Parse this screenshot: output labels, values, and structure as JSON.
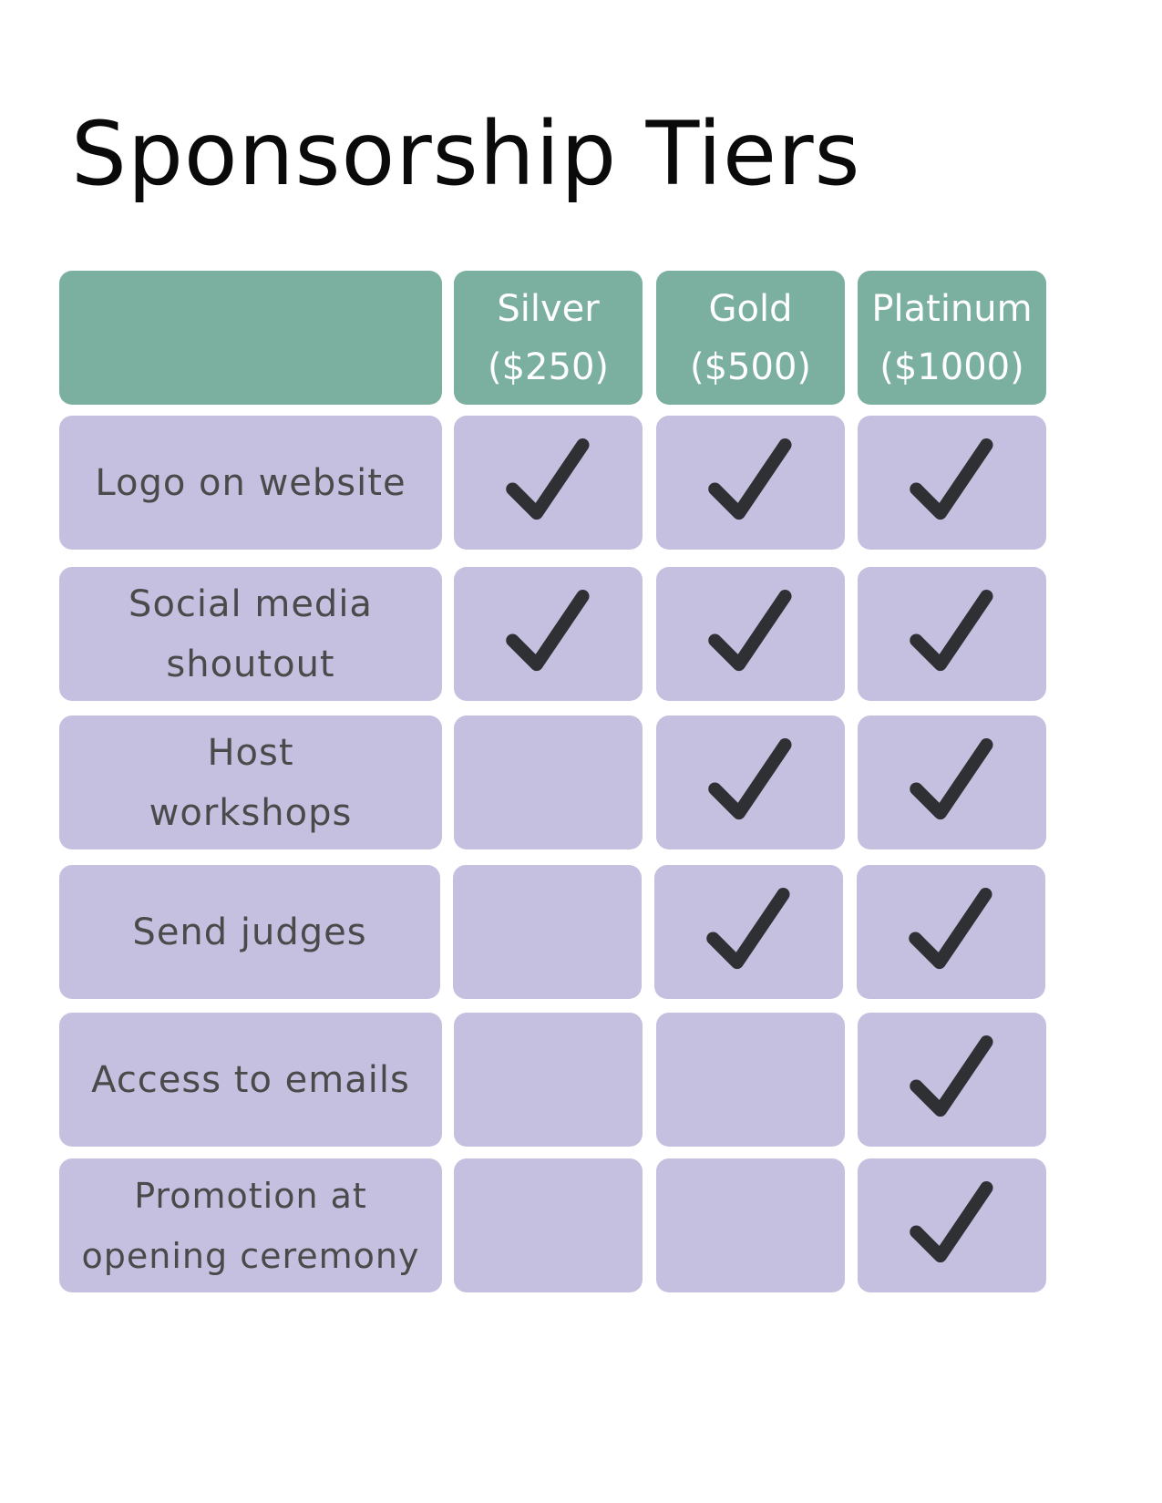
{
  "title": "Sponsorship Tiers",
  "colors": {
    "header": "#7bafa0",
    "cell": "#c5bfe0",
    "check": "#2f3034",
    "feature_text": "#4a4a4a"
  },
  "tiers": [
    {
      "name": "Silver",
      "price": "($250)"
    },
    {
      "name": "Gold",
      "price": "($500)"
    },
    {
      "name": "Platinum",
      "price": "($1000)"
    }
  ],
  "features": [
    {
      "label": "Logo on website",
      "included": [
        true,
        true,
        true
      ]
    },
    {
      "label": "Social media shoutout",
      "included": [
        true,
        true,
        true
      ]
    },
    {
      "label": "Host workshops",
      "included": [
        false,
        true,
        true
      ]
    },
    {
      "label": "Send judges",
      "included": [
        false,
        true,
        true
      ]
    },
    {
      "label": "Access to emails",
      "included": [
        false,
        false,
        true
      ]
    },
    {
      "label": "Promotion at opening ceremony",
      "included": [
        false,
        false,
        true
      ]
    }
  ],
  "icons": {
    "included": "checkmark-icon"
  }
}
